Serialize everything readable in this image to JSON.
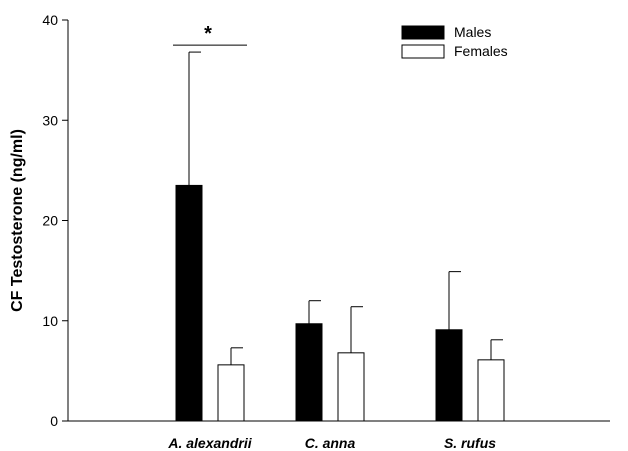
{
  "chart_data": {
    "type": "bar",
    "ylabel": "CF Testosterone (ng/ml)",
    "xlabel": "",
    "ylim": [
      0,
      40
    ],
    "yticks": [
      "0",
      "10",
      "20",
      "30",
      "40"
    ],
    "categories": [
      "A. alexandrii",
      "C. anna",
      "S. rufus"
    ],
    "series": [
      {
        "name": "Males",
        "values": [
          23.5,
          9.7,
          9.1
        ],
        "errors": [
          13.3,
          2.3,
          5.8
        ],
        "color": "#000000"
      },
      {
        "name": "Females",
        "values": [
          5.6,
          6.8,
          6.1
        ],
        "errors": [
          1.7,
          4.6,
          2.0
        ],
        "color": "#ffffff"
      }
    ],
    "legend": {
      "position": "top-right",
      "entries": [
        "Males",
        "Females"
      ]
    },
    "annotations": [
      {
        "text": "*",
        "category": "A. alexandrii",
        "y": 37.5
      }
    ],
    "grid": false
  }
}
